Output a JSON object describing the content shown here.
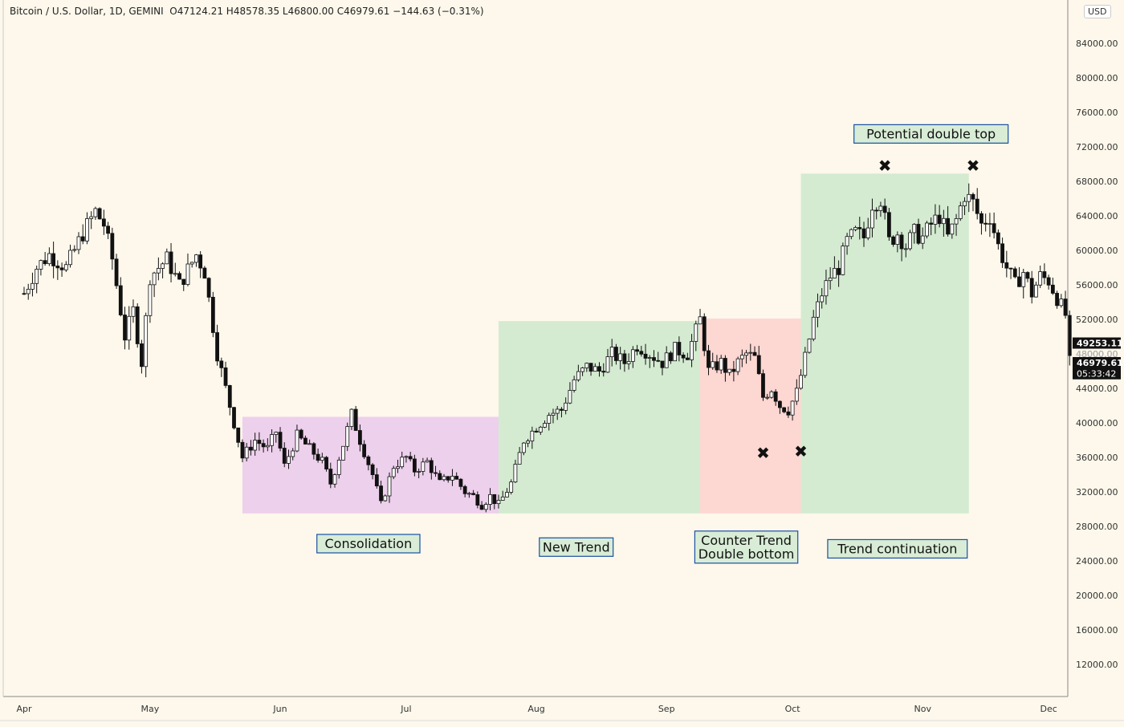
{
  "header": {
    "symbol": "Bitcoin / U.S. Dollar, 1D, GEMINI",
    "open": "O47124.21",
    "high": "H48578.35",
    "low": "L46800.00",
    "close": "C46979.61",
    "change": "−144.63 (−0.31%)"
  },
  "currency_label": "USD",
  "chart_data": {
    "type": "candlestick",
    "title": "Bitcoin / U.S. Dollar, 1D, GEMINI",
    "ylim": [
      8000,
      88000
    ],
    "y_ticks": [
      "12000.00",
      "16000.00",
      "20000.00",
      "24000.00",
      "28000.00",
      "32000.00",
      "36000.00",
      "40000.00",
      "44000.00",
      "48000.00",
      "52000.00",
      "56000.00",
      "60000.00",
      "64000.00",
      "68000.00",
      "72000.00",
      "76000.00",
      "80000.00",
      "84000.00"
    ],
    "x_ticks": [
      {
        "label": "Apr",
        "day": 0
      },
      {
        "label": "May",
        "day": 30
      },
      {
        "label": "Jun",
        "day": 61
      },
      {
        "label": "Jul",
        "day": 91
      },
      {
        "label": "Aug",
        "day": 122
      },
      {
        "label": "Sep",
        "day": 153
      },
      {
        "label": "Oct",
        "day": 183
      },
      {
        "label": "Nov",
        "day": 214
      },
      {
        "label": "Dec",
        "day": 244
      }
    ],
    "price_labels": [
      {
        "text": "49253.11",
        "value": 49253.11,
        "style": "line"
      },
      {
        "text": "48000.00",
        "value": 48000,
        "style": "tick"
      },
      {
        "text": "46979.61",
        "value": 46979.61,
        "style": "close"
      },
      {
        "text": "05:33:42",
        "value": 45700,
        "style": "countdown"
      }
    ],
    "zones": [
      {
        "name": "consolidation",
        "color": "#edd0ec",
        "x0": 52,
        "x1": 113,
        "y0": 29500,
        "y1": 40700
      },
      {
        "name": "new-trend",
        "color": "#d4ebd1",
        "x0": 113,
        "x1": 161,
        "y0": 29500,
        "y1": 51800
      },
      {
        "name": "counter-trend",
        "color": "#fdd7d2",
        "x0": 161,
        "x1": 185,
        "y0": 29500,
        "y1": 52100
      },
      {
        "name": "trend-continuation",
        "color": "#d4ebd1",
        "x0": 185,
        "x1": 225,
        "y0": 29500,
        "y1": 68900
      }
    ],
    "annotations": [
      {
        "text": "Consolidation",
        "day": 82,
        "value": 26000
      },
      {
        "text": "New Trend",
        "day": 131.5,
        "value": 25600
      },
      {
        "text": "Counter Trend\nDouble bottom",
        "day": 172,
        "value": 25600
      },
      {
        "text": "Trend continuation",
        "day": 208,
        "value": 25400
      },
      {
        "text": "Potential double top",
        "day": 216,
        "value": 73500
      }
    ],
    "markers": [
      {
        "day": 205,
        "value": 69800
      },
      {
        "day": 226,
        "value": 69800
      },
      {
        "day": 176,
        "value": 36500
      },
      {
        "day": 185,
        "value": 36700
      }
    ],
    "anchors": [
      [
        0,
        55000
      ],
      [
        3,
        58000
      ],
      [
        6,
        59500
      ],
      [
        10,
        58000
      ],
      [
        14,
        62000
      ],
      [
        17,
        64500
      ],
      [
        19,
        63000
      ],
      [
        21,
        59000
      ],
      [
        24,
        50000
      ],
      [
        26,
        53000
      ],
      [
        28,
        47000
      ],
      [
        30,
        57000
      ],
      [
        34,
        59000
      ],
      [
        37,
        56000
      ],
      [
        41,
        59500
      ],
      [
        43,
        57500
      ],
      [
        46,
        48000
      ],
      [
        49,
        42000
      ],
      [
        52,
        36000
      ],
      [
        55,
        38000
      ],
      [
        58,
        37000
      ],
      [
        60,
        39000
      ],
      [
        62,
        35000
      ],
      [
        65,
        38500
      ],
      [
        68,
        37000
      ],
      [
        71,
        35500
      ],
      [
        73,
        33000
      ],
      [
        76,
        37500
      ],
      [
        78,
        41000
      ],
      [
        80,
        38000
      ],
      [
        83,
        34000
      ],
      [
        85,
        30500
      ],
      [
        88,
        35000
      ],
      [
        91,
        36000
      ],
      [
        93,
        34500
      ],
      [
        96,
        35500
      ],
      [
        99,
        33000
      ],
      [
        102,
        34000
      ],
      [
        105,
        32000
      ],
      [
        107,
        31500
      ],
      [
        109,
        30500
      ],
      [
        111,
        31500
      ],
      [
        113,
        30500
      ],
      [
        116,
        33000
      ],
      [
        119,
        38000
      ],
      [
        122,
        39500
      ],
      [
        125,
        41000
      ],
      [
        128,
        41500
      ],
      [
        131,
        45000
      ],
      [
        134,
        46500
      ],
      [
        137,
        46000
      ],
      [
        140,
        48000
      ],
      [
        143,
        47000
      ],
      [
        146,
        49000
      ],
      [
        149,
        48000
      ],
      [
        152,
        47000
      ],
      [
        155,
        48500
      ],
      [
        158,
        48000
      ],
      [
        161,
        52000
      ],
      [
        163,
        46000
      ],
      [
        166,
        47000
      ],
      [
        168,
        45500
      ],
      [
        170,
        47000
      ],
      [
        172,
        48000
      ],
      [
        174,
        47500
      ],
      [
        176,
        43000
      ],
      [
        178,
        44000
      ],
      [
        180,
        42000
      ],
      [
        182,
        41500
      ],
      [
        184,
        43500
      ],
      [
        186,
        47500
      ],
      [
        188,
        52000
      ],
      [
        190,
        55000
      ],
      [
        192,
        57000
      ],
      [
        194,
        58000
      ],
      [
        196,
        61000
      ],
      [
        198,
        62000
      ],
      [
        200,
        61500
      ],
      [
        202,
        65500
      ],
      [
        204,
        66000
      ],
      [
        206,
        61000
      ],
      [
        208,
        62000
      ],
      [
        210,
        60500
      ],
      [
        212,
        62000
      ],
      [
        214,
        61500
      ],
      [
        216,
        63000
      ],
      [
        218,
        64000
      ],
      [
        220,
        61500
      ],
      [
        222,
        63500
      ],
      [
        224,
        66500
      ],
      [
        226,
        65500
      ],
      [
        228,
        63000
      ],
      [
        230,
        64000
      ],
      [
        232,
        60500
      ],
      [
        234,
        58000
      ],
      [
        236,
        56000
      ],
      [
        238,
        57500
      ],
      [
        240,
        55000
      ],
      [
        242,
        57000
      ],
      [
        244,
        56500
      ],
      [
        246,
        54500
      ],
      [
        248,
        52500
      ],
      [
        249,
        47000
      ]
    ]
  }
}
